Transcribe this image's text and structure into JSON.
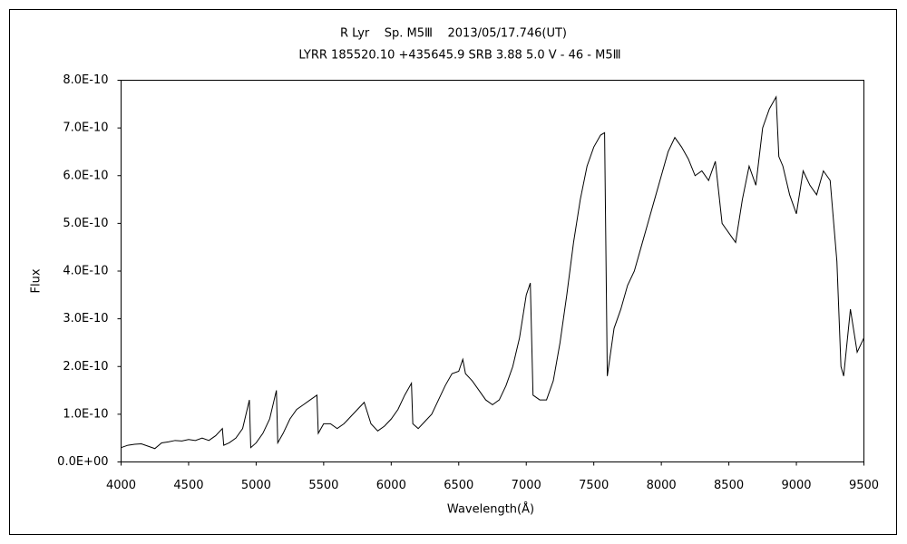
{
  "chart_data": {
    "type": "line",
    "title": "R Lyr    Sp. M5Ⅲ    2013/05/17.746(UT)",
    "subtitle": "LYRR 185520.10 +435645.9 SRB 3.88 5.0 V - 46 - M5Ⅲ",
    "x_label": "Wavelength(Å)",
    "y_label": "Flux",
    "color": "#000000",
    "xlim": [
      4000,
      9500
    ],
    "xticks": [
      4000,
      4500,
      5000,
      5500,
      6000,
      6500,
      7000,
      7500,
      8000,
      8500,
      9000,
      9500
    ],
    "ylim": [
      0,
      8e-10
    ],
    "yticks": [
      {
        "value": 0,
        "label": "0.0E+00"
      },
      {
        "value": 1e-10,
        "label": "1.0E-10"
      },
      {
        "value": 2e-10,
        "label": "2.0E-10"
      },
      {
        "value": 3e-10,
        "label": "3.0E-10"
      },
      {
        "value": 4e-10,
        "label": "4.0E-10"
      },
      {
        "value": 5e-10,
        "label": "5.0E-10"
      },
      {
        "value": 6e-10,
        "label": "6.0E-10"
      },
      {
        "value": 7e-10,
        "label": "7.0E-10"
      },
      {
        "value": 8e-10,
        "label": "8.0E-10"
      }
    ],
    "x": [
      4000,
      4050,
      4100,
      4150,
      4200,
      4250,
      4300,
      4350,
      4400,
      4450,
      4500,
      4550,
      4600,
      4650,
      4700,
      4750,
      4760,
      4800,
      4850,
      4900,
      4950,
      4960,
      5000,
      5050,
      5100,
      5150,
      5160,
      5200,
      5250,
      5300,
      5350,
      5400,
      5450,
      5460,
      5500,
      5550,
      5600,
      5650,
      5700,
      5750,
      5800,
      5850,
      5900,
      5950,
      6000,
      6050,
      6100,
      6150,
      6160,
      6200,
      6250,
      6300,
      6350,
      6400,
      6450,
      6500,
      6530,
      6550,
      6600,
      6650,
      6700,
      6750,
      6800,
      6850,
      6900,
      6950,
      7000,
      7030,
      7050,
      7100,
      7150,
      7200,
      7250,
      7300,
      7350,
      7400,
      7450,
      7500,
      7550,
      7580,
      7600,
      7650,
      7700,
      7750,
      7800,
      7850,
      7900,
      7950,
      8000,
      8050,
      8100,
      8150,
      8200,
      8250,
      8300,
      8350,
      8400,
      8450,
      8500,
      8550,
      8600,
      8650,
      8700,
      8750,
      8800,
      8850,
      8870,
      8900,
      8950,
      9000,
      9050,
      9100,
      9150,
      9200,
      9250,
      9300,
      9330,
      9350,
      9400,
      9450,
      9500
    ],
    "values": [
      3e-11,
      3.5e-11,
      3.7e-11,
      3.8e-11,
      3.3e-11,
      2.8e-11,
      4e-11,
      4.2e-11,
      4.5e-11,
      4.4e-11,
      4.7e-11,
      4.5e-11,
      5e-11,
      4.5e-11,
      5.5e-11,
      7e-11,
      3.5e-11,
      4e-11,
      5e-11,
      7e-11,
      1.3e-10,
      3e-11,
      4e-11,
      6e-11,
      9e-11,
      1.5e-10,
      4e-11,
      6e-11,
      9e-11,
      1.1e-10,
      1.2e-10,
      1.3e-10,
      1.4e-10,
      6e-11,
      8e-11,
      8e-11,
      7e-11,
      8e-11,
      9.5e-11,
      1.1e-10,
      1.25e-10,
      8e-11,
      6.5e-11,
      7.5e-11,
      9e-11,
      1.1e-10,
      1.4e-10,
      1.65e-10,
      8e-11,
      7e-11,
      8.5e-11,
      1e-10,
      1.3e-10,
      1.6e-10,
      1.85e-10,
      1.9e-10,
      2.15e-10,
      1.85e-10,
      1.7e-10,
      1.5e-10,
      1.3e-10,
      1.2e-10,
      1.3e-10,
      1.6e-10,
      2e-10,
      2.6e-10,
      3.5e-10,
      3.75e-10,
      1.4e-10,
      1.3e-10,
      1.3e-10,
      1.7e-10,
      2.5e-10,
      3.5e-10,
      4.6e-10,
      5.5e-10,
      6.2e-10,
      6.6e-10,
      6.85e-10,
      6.9e-10,
      1.8e-10,
      2.8e-10,
      3.2e-10,
      3.7e-10,
      4e-10,
      4.5e-10,
      5e-10,
      5.5e-10,
      6e-10,
      6.5e-10,
      6.8e-10,
      6.6e-10,
      6.35e-10,
      6e-10,
      6.1e-10,
      5.9e-10,
      6.3e-10,
      5e-10,
      4.8e-10,
      4.6e-10,
      5.5e-10,
      6.2e-10,
      5.8e-10,
      7e-10,
      7.4e-10,
      7.65e-10,
      6.4e-10,
      6.2e-10,
      5.6e-10,
      5.2e-10,
      6.1e-10,
      5.8e-10,
      5.6e-10,
      6.1e-10,
      5.9e-10,
      4.2e-10,
      2e-10,
      1.8e-10,
      3.2e-10,
      2.3e-10,
      2.6e-10
    ]
  }
}
